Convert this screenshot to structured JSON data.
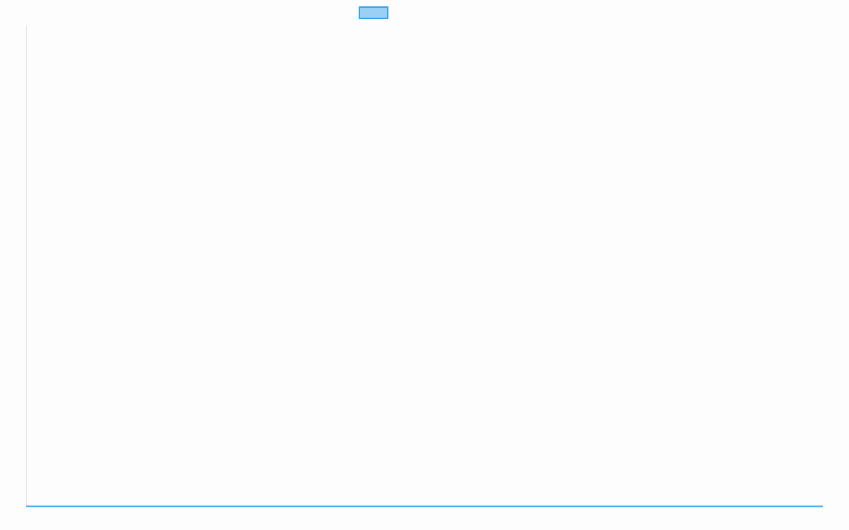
{
  "chart_data": {
    "type": "line",
    "title": "",
    "xlabel": "",
    "ylabel": "",
    "categories": [],
    "series": [
      {
        "name": "",
        "values": [],
        "color": "#36a2eb",
        "fill": "#9ad0f5"
      }
    ],
    "grid": false,
    "legend": "top",
    "axis_color": "#e5e5e5"
  }
}
